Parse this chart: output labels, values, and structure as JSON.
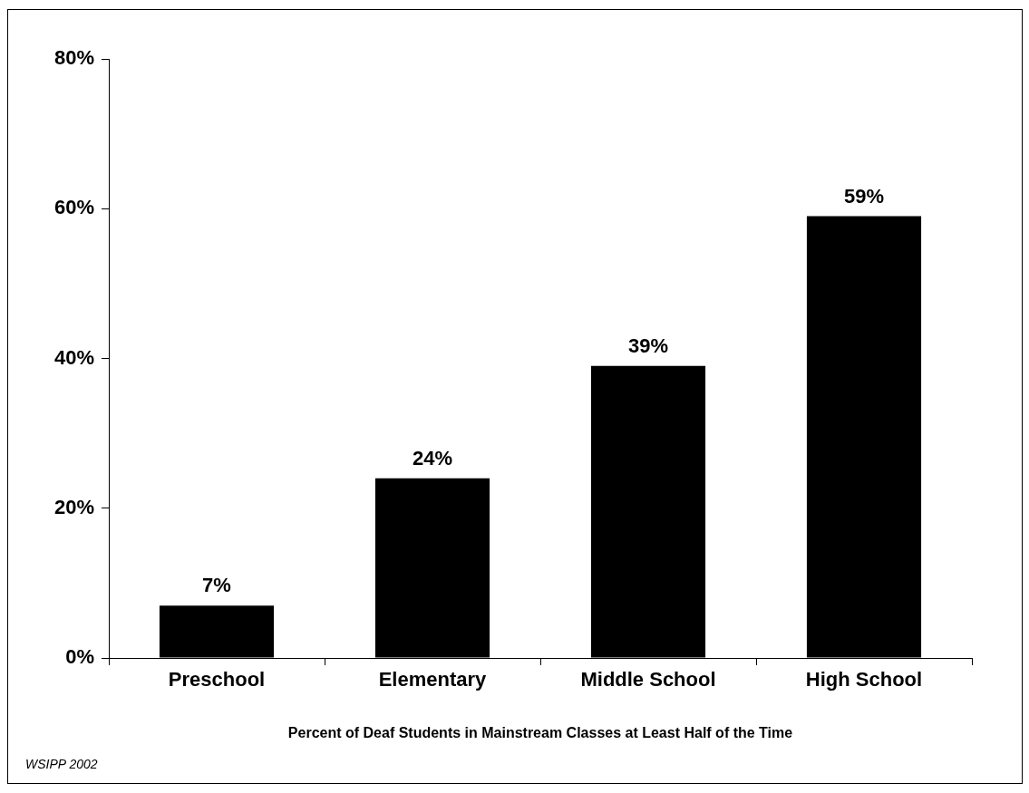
{
  "chart_data": {
    "type": "bar",
    "xlabel": "Percent of Deaf Students in Mainstream Classes at Least Half of the Time",
    "categories": [
      "Preschool",
      "Elementary",
      "Middle School",
      "High School"
    ],
    "values": [
      7,
      24,
      39,
      59
    ],
    "color": "#000000",
    "ylim": [
      0,
      80
    ],
    "yticks": [
      {
        "value": 0,
        "label": "0%"
      },
      {
        "value": 20,
        "label": "20%"
      },
      {
        "value": 40,
        "label": "40%"
      },
      {
        "value": 60,
        "label": "60%"
      },
      {
        "value": 80,
        "label": "80%"
      }
    ],
    "value_labels": [
      "7%",
      "24%",
      "39%",
      "59%"
    ],
    "grid": false,
    "legend": false,
    "annotations": [
      "WSIPP 2002"
    ]
  }
}
